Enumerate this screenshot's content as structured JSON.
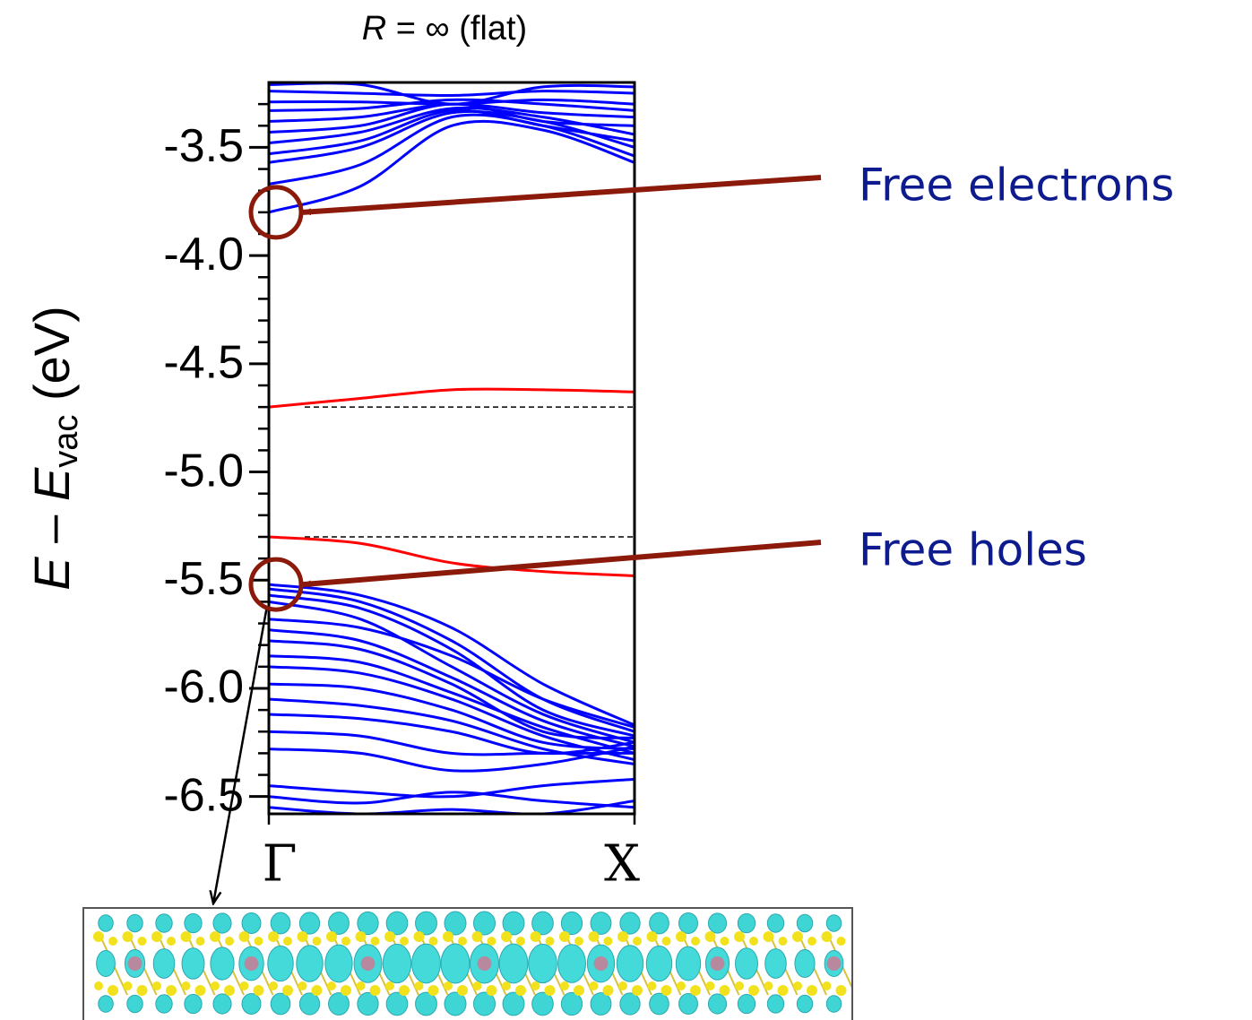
{
  "chart_data": {
    "type": "line",
    "title": {
      "symbol": "R",
      "rest": "= ∞ (flat)"
    },
    "ylabel": {
      "var1": "E",
      "minus": "–",
      "var2": "E",
      "sub": "vac",
      "unit": "(eV)"
    },
    "x": [
      0,
      0.25,
      0.5,
      0.75,
      1
    ],
    "xlim": [
      0,
      1
    ],
    "xticks": [
      {
        "value": 0,
        "label": "Γ"
      },
      {
        "value": 1,
        "label": "X"
      }
    ],
    "ylim": [
      -6.58,
      -3.2
    ],
    "yticks": [
      {
        "value": -6.5,
        "label": "-6.5"
      },
      {
        "value": -6.0,
        "label": "-6.0"
      },
      {
        "value": -5.5,
        "label": "-5.5"
      },
      {
        "value": -5.0,
        "label": "-5.0"
      },
      {
        "value": -4.5,
        "label": "-4.5"
      },
      {
        "value": -4.0,
        "label": "-4.0"
      },
      {
        "value": -3.5,
        "label": "-3.5"
      }
    ],
    "yminor": [
      -6.4,
      -6.3,
      -6.2,
      -6.1,
      -5.9,
      -5.8,
      -5.7,
      -5.6,
      -5.4,
      -5.3,
      -5.2,
      -5.1,
      -4.9,
      -4.8,
      -4.7,
      -4.6,
      -4.4,
      -4.3,
      -4.2,
      -4.1,
      -3.9,
      -3.8,
      -3.7,
      -3.6,
      -3.4,
      -3.3
    ],
    "dashed_levels": [
      -4.7,
      -5.3
    ],
    "series": [
      {
        "color": "#0000ff",
        "values": [
          -3.8,
          -3.68,
          -3.4,
          -3.42,
          -3.57
        ]
      },
      {
        "color": "#0000ff",
        "values": [
          -3.67,
          -3.58,
          -3.36,
          -3.4,
          -3.54
        ]
      },
      {
        "color": "#0000ff",
        "values": [
          -3.57,
          -3.5,
          -3.34,
          -3.38,
          -3.5
        ]
      },
      {
        "color": "#0000ff",
        "values": [
          -3.53,
          -3.47,
          -3.33,
          -3.4,
          -3.47
        ]
      },
      {
        "color": "#0000ff",
        "values": [
          -3.48,
          -3.43,
          -3.32,
          -3.36,
          -3.44
        ]
      },
      {
        "color": "#0000ff",
        "values": [
          -3.43,
          -3.4,
          -3.3,
          -3.38,
          -3.4
        ]
      },
      {
        "color": "#0000ff",
        "values": [
          -3.38,
          -3.36,
          -3.3,
          -3.34,
          -3.36
        ]
      },
      {
        "color": "#0000ff",
        "values": [
          -3.33,
          -3.32,
          -3.28,
          -3.3,
          -3.33
        ]
      },
      {
        "color": "#0000ff",
        "values": [
          -3.29,
          -3.29,
          -3.3,
          -3.28,
          -3.3
        ]
      },
      {
        "color": "#0000ff",
        "values": [
          -3.24,
          -3.25,
          -3.26,
          -3.24,
          -3.25
        ]
      },
      {
        "color": "#0000ff",
        "values": [
          -3.21,
          -3.21,
          -3.3,
          -3.22,
          -3.22
        ]
      },
      {
        "color": "#ff0000",
        "values": [
          -4.7,
          -4.66,
          -4.62,
          -4.62,
          -4.63
        ]
      },
      {
        "color": "#ff0000",
        "values": [
          -5.3,
          -5.33,
          -5.42,
          -5.46,
          -5.48
        ]
      },
      {
        "color": "#0000ff",
        "values": [
          -5.52,
          -5.57,
          -5.72,
          -5.98,
          -6.17
        ]
      },
      {
        "color": "#0000ff",
        "values": [
          -5.54,
          -5.6,
          -5.78,
          -6.05,
          -6.2
        ]
      },
      {
        "color": "#0000ff",
        "values": [
          -5.57,
          -5.63,
          -5.82,
          -6.1,
          -6.22
        ]
      },
      {
        "color": "#0000ff",
        "values": [
          -5.6,
          -5.68,
          -5.9,
          -6.12,
          -6.25
        ]
      },
      {
        "color": "#0000ff",
        "values": [
          -5.68,
          -5.72,
          -5.85,
          -6.05,
          -6.18
        ]
      },
      {
        "color": "#0000ff",
        "values": [
          -5.73,
          -5.78,
          -5.95,
          -6.15,
          -6.27
        ]
      },
      {
        "color": "#0000ff",
        "values": [
          -5.78,
          -5.82,
          -5.98,
          -6.2,
          -6.23
        ]
      },
      {
        "color": "#0000ff",
        "values": [
          -5.85,
          -5.88,
          -6.02,
          -6.18,
          -6.3
        ]
      },
      {
        "color": "#0000ff",
        "values": [
          -5.9,
          -5.93,
          -6.05,
          -6.22,
          -6.33
        ]
      },
      {
        "color": "#0000ff",
        "values": [
          -5.98,
          -6.0,
          -6.1,
          -6.25,
          -6.28
        ]
      },
      {
        "color": "#0000ff",
        "values": [
          -6.05,
          -6.08,
          -6.15,
          -6.28,
          -6.35
        ]
      },
      {
        "color": "#0000ff",
        "values": [
          -6.12,
          -6.14,
          -6.2,
          -6.3,
          -6.25
        ]
      },
      {
        "color": "#0000ff",
        "values": [
          -6.2,
          -6.22,
          -6.3,
          -6.3,
          -6.3
        ]
      },
      {
        "color": "#0000ff",
        "values": [
          -6.28,
          -6.3,
          -6.38,
          -6.35,
          -6.27
        ]
      },
      {
        "color": "#0000ff",
        "values": [
          -6.45,
          -6.48,
          -6.5,
          -6.45,
          -6.42
        ]
      },
      {
        "color": "#0000ff",
        "values": [
          -6.5,
          -6.53,
          -6.48,
          -6.52,
          -6.55
        ]
      },
      {
        "color": "#0000ff",
        "values": [
          -6.55,
          -6.58,
          -6.56,
          -6.58,
          -6.52
        ]
      }
    ],
    "annotations": [
      {
        "text": "Free electrons",
        "x": 0,
        "y": -3.8
      },
      {
        "text": "Free holes",
        "x": 0,
        "y": -5.52
      }
    ],
    "annotation_color": "#0d1b8e",
    "arrow_color": "#8b1a0a"
  }
}
